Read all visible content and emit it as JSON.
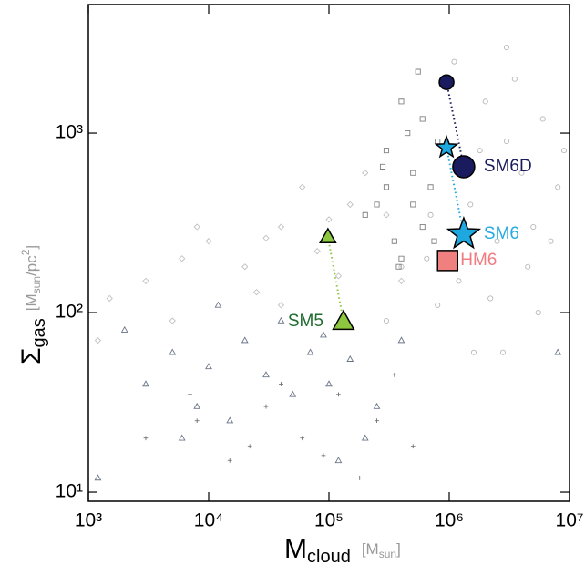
{
  "chart_data": {
    "type": "scatter",
    "xlog": true,
    "ylog": true,
    "xlim": [
      1000,
      10000000
    ],
    "ylim": [
      8.9,
      5200
    ],
    "xticks": [
      {
        "value": 1000,
        "label": "10³"
      },
      {
        "value": 10000,
        "label": "10⁴"
      },
      {
        "value": 100000,
        "label": "10⁵"
      },
      {
        "value": 1000000,
        "label": "10⁶"
      },
      {
        "value": 10000000,
        "label": "10⁷"
      }
    ],
    "yticks": [
      {
        "value": 10,
        "label": "10¹"
      },
      {
        "value": 100,
        "label": "10²"
      },
      {
        "value": 1000,
        "label": "10³"
      }
    ],
    "xlabel_parts": [
      "M",
      "cloud",
      "[M",
      "sun",
      "]"
    ],
    "ylabel_parts": [
      "Σ",
      "gas",
      "[M",
      "sun",
      "/pc",
      "2",
      "]"
    ],
    "series": [
      {
        "marker": "circle",
        "color": "#b8b8b8",
        "x": [
          2000000.0,
          3000000.0,
          1500000.0,
          4000000.0,
          6000000.0,
          2500000.0,
          1200000.0,
          5000000.0,
          8000000.0,
          3500000.0,
          700000.0,
          1800000.0,
          2200000.0,
          9000000.0,
          4500000.0,
          1100000.0,
          650000.0,
          3000000.0,
          5500000.0,
          2800000.0,
          7000000.0,
          1600000.0,
          800000.0,
          400000.0,
          300000.0
        ],
        "values": [
          1500,
          900,
          400,
          600,
          1200,
          250,
          150,
          300,
          500,
          2000,
          350,
          800,
          120,
          800,
          180,
          2500,
          200,
          3000,
          100,
          60,
          250,
          60,
          110,
          180,
          90
        ]
      },
      {
        "marker": "square",
        "color": "#808080",
        "x": [
          400000.0,
          300000.0,
          500000.0,
          250000.0,
          600000.0,
          350000.0,
          450000.0,
          700000.0,
          200000.0,
          550000.0,
          300000.0,
          800000.0,
          400000.0,
          600000.0,
          280000.0,
          500000.0,
          750000.0,
          380000.0
        ],
        "values": [
          1500,
          800,
          600,
          400,
          300,
          250,
          1000,
          500,
          350,
          2200,
          500,
          900,
          200,
          1200,
          650,
          400,
          250,
          180
        ]
      },
      {
        "marker": "diamond",
        "color": "#c0c0c0",
        "x": [
          1500.0,
          3000.0,
          6000.0,
          10000.0,
          20000.0,
          40000.0,
          80000.0,
          150000.0,
          300000.0,
          5000.0,
          25000.0,
          120000.0,
          60000.0,
          200000.0,
          1200.0,
          8000.0,
          40000.0,
          30000.0,
          100000.0,
          400000.0
        ],
        "values": [
          120,
          150,
          200,
          250,
          180,
          300,
          220,
          400,
          350,
          90,
          130,
          160,
          500,
          600,
          70,
          300,
          110,
          260,
          330,
          150
        ]
      },
      {
        "marker": "triangle",
        "color": "#6a7588",
        "x": [
          1200.0,
          2000.0,
          3000.0,
          5000.0,
          8000.0,
          10000.0,
          15000.0,
          20000.0,
          30000.0,
          50000.0,
          70000.0,
          100000.0,
          150000.0,
          250000.0,
          40000.0,
          6000.0,
          12000.0,
          200000.0,
          90000.0,
          400000.0,
          8000000.0,
          120000.0
        ],
        "values": [
          12,
          80,
          40,
          60,
          30,
          50,
          25,
          70,
          45,
          35,
          60,
          40,
          55,
          30,
          90,
          20,
          110,
          20,
          75,
          70,
          60,
          15
        ]
      },
      {
        "marker": "plus",
        "color": "#707070",
        "x": [
          3000.0,
          8000.0,
          15000.0,
          30000.0,
          60000.0,
          120000.0,
          250000.0,
          500000.0,
          180000.0,
          40000.0,
          90000.0,
          350000.0,
          7000.0,
          22000.0
        ],
        "values": [
          20,
          25,
          15,
          30,
          20,
          35,
          25,
          18,
          12,
          40,
          16,
          45,
          35,
          18
        ]
      },
      {
        "name": "SM6D",
        "marker": "circle",
        "color": "#1a1a5e",
        "label_color": "#1a1a5e",
        "line": "dotted",
        "x": [
          950000,
          1320000
        ],
        "values": [
          1920,
          649
        ]
      },
      {
        "name": "SM6",
        "marker": "star",
        "color": "#1ea8e0",
        "label_color": "#27aae1",
        "line": "dotted",
        "x": [
          950000,
          1320000
        ],
        "values": [
          830,
          273
        ]
      },
      {
        "name": "HM6",
        "marker": "square",
        "color": "#f08080",
        "label_color": "#f07c80",
        "x": [
          970000
        ],
        "values": [
          195
        ]
      },
      {
        "name": "SM5",
        "marker": "triangle",
        "color": "#8dc63f",
        "label_color": "#1e6b2e",
        "line": "dotted",
        "x": [
          98000,
          132000
        ],
        "values": [
          264,
          89
        ]
      }
    ]
  }
}
